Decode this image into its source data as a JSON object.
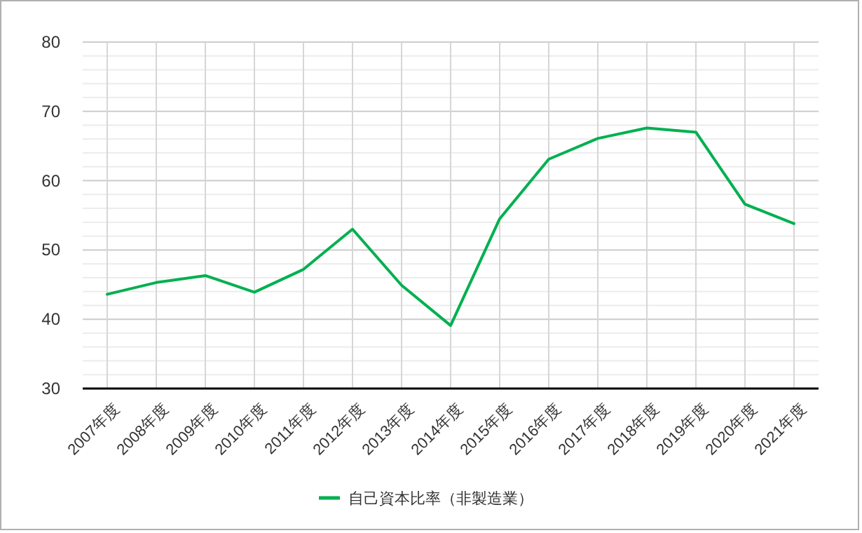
{
  "chart_data": {
    "type": "line",
    "categories": [
      "2007年度",
      "2008年度",
      "2009年度",
      "2010年度",
      "2011年度",
      "2012年度",
      "2013年度",
      "2014年度",
      "2015年度",
      "2016年度",
      "2017年度",
      "2018年度",
      "2019年度",
      "2020年度",
      "2021年度"
    ],
    "series": [
      {
        "name": "自己資本比率（非製造業）",
        "color": "#00b050",
        "values": [
          43.6,
          45.3,
          46.3,
          43.9,
          47.2,
          53.0,
          44.9,
          39.1,
          54.5,
          63.1,
          66.1,
          67.6,
          67.0,
          56.6,
          53.8
        ]
      }
    ],
    "ylim": [
      30,
      80
    ],
    "yticks": [
      30,
      40,
      50,
      60,
      70,
      80
    ],
    "grid": true,
    "legend": "bottom",
    "marker": "none",
    "line_style": "solid"
  }
}
